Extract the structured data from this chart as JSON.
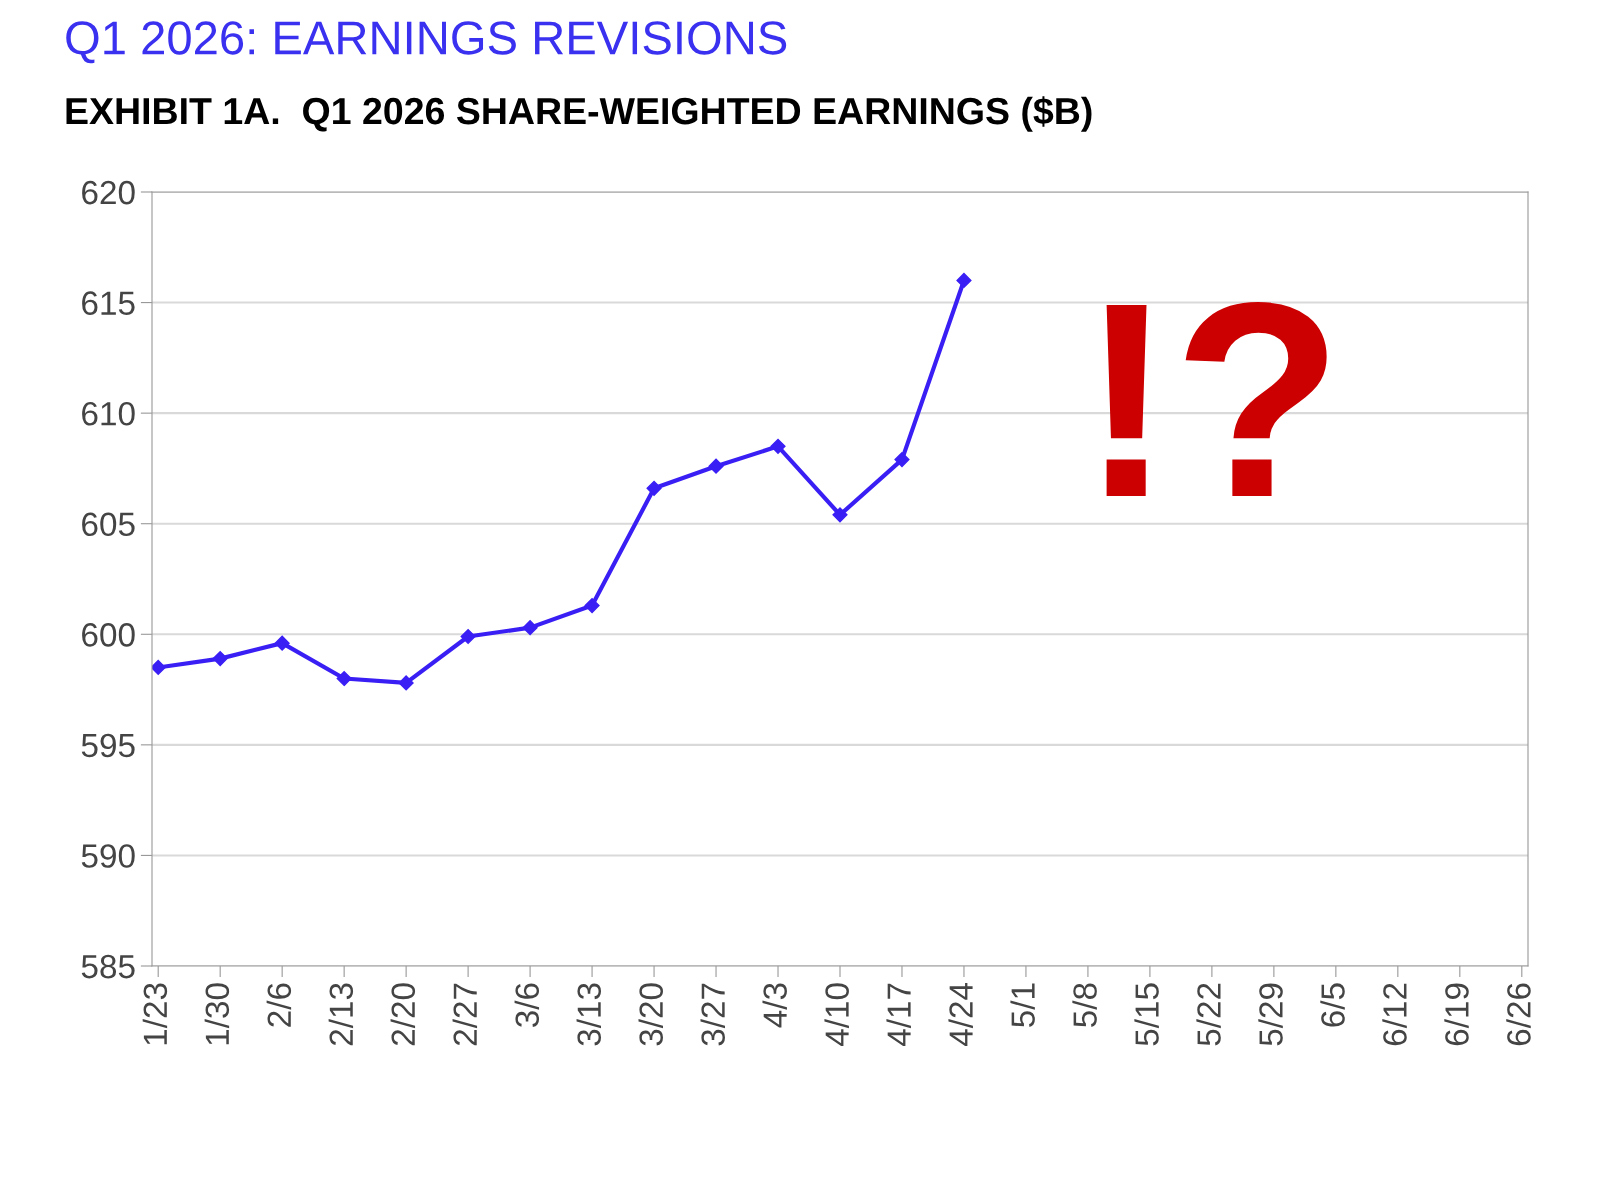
{
  "chart_data": {
    "type": "line",
    "title": "Q1 2026: EARNINGS REVISIONS",
    "subtitle": "EXHIBIT 1A.  Q1 2026 SHARE-WEIGHTED EARNINGS ($B)",
    "categories": [
      "1/23",
      "1/30",
      "2/6",
      "2/13",
      "2/20",
      "2/27",
      "3/6",
      "3/13",
      "3/20",
      "3/27",
      "4/3",
      "4/10",
      "4/17",
      "4/24",
      "5/1",
      "5/8",
      "5/15",
      "5/22",
      "5/29",
      "6/5",
      "6/12",
      "6/19",
      "6/26"
    ],
    "series": [
      {
        "color": "#3a1ff5",
        "values": [
          598.5,
          598.9,
          599.6,
          598.0,
          597.8,
          599.9,
          600.3,
          601.3,
          606.6,
          607.6,
          608.5,
          605.4,
          607.9,
          616.0,
          null,
          null,
          null,
          null,
          null,
          null,
          null,
          null,
          null
        ]
      }
    ],
    "ylim": [
      585,
      620
    ],
    "yticks": [
      585,
      590,
      595,
      600,
      605,
      610,
      615,
      620
    ],
    "grid": "y",
    "marker": "diamond",
    "line_style": "solid",
    "legend": false,
    "annotations": [
      "!?"
    ]
  }
}
